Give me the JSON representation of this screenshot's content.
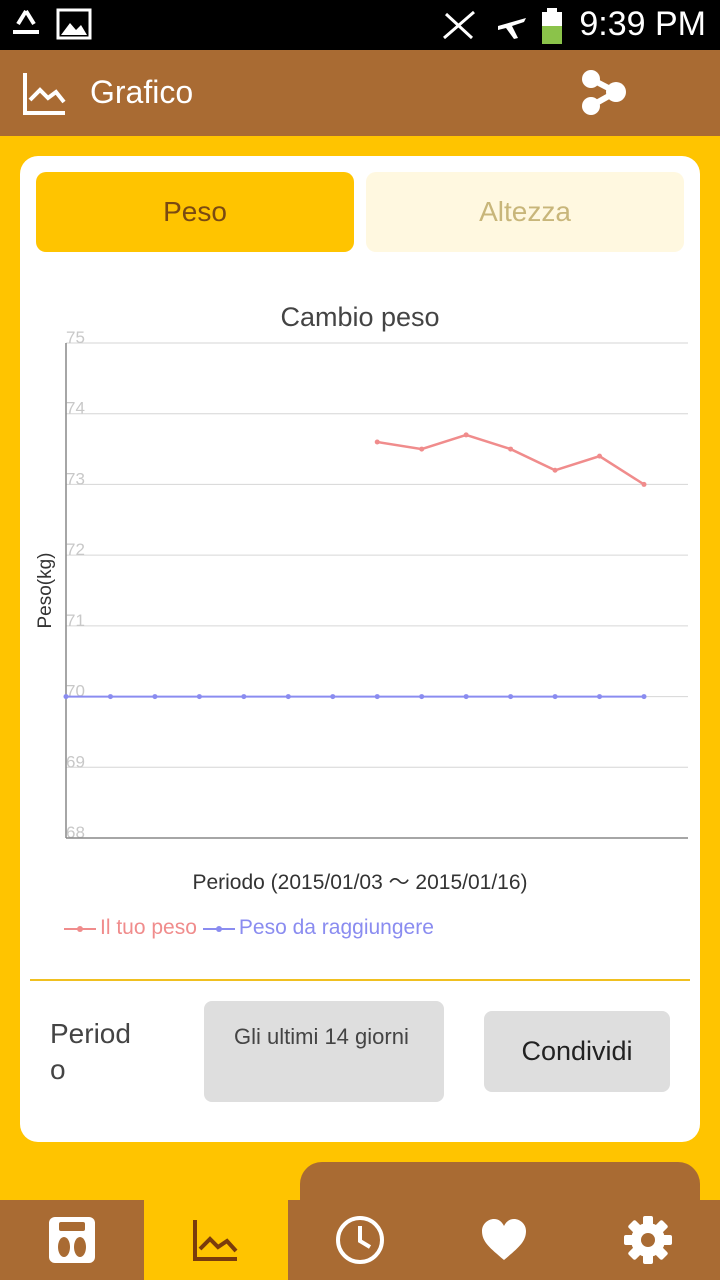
{
  "status_bar": {
    "time": "9:39 PM"
  },
  "app_bar": {
    "title": "Grafico"
  },
  "tabs": [
    {
      "label": "Peso",
      "selected": true
    },
    {
      "label": "Altezza",
      "selected": false
    }
  ],
  "chart_data": {
    "type": "line",
    "title": "Cambio peso",
    "xlabel": "Periodo (2015/01/03 〜 2015/01/16)",
    "ylabel": "Peso(kg)",
    "ylim": [
      68,
      75
    ],
    "yticks": [
      75,
      74,
      73,
      72,
      71,
      70,
      69,
      68
    ],
    "x": [
      1,
      2,
      3,
      4,
      5,
      6,
      7,
      8,
      9,
      10,
      11,
      12,
      13,
      14
    ],
    "series": [
      {
        "name": "Il tuo peso",
        "color": "#f08c8c",
        "values": [
          null,
          null,
          null,
          null,
          null,
          null,
          null,
          73.6,
          73.5,
          73.7,
          73.5,
          73.2,
          73.4,
          73.0
        ]
      },
      {
        "name": "Peso da raggiungere",
        "color": "#8a8cf0",
        "values": [
          70,
          70,
          70,
          70,
          70,
          70,
          70,
          70,
          70,
          70,
          70,
          70,
          70,
          70
        ]
      }
    ],
    "grid": true,
    "legend": "bottom-left"
  },
  "period": {
    "label": "Period\no",
    "value": "Gli ultimi 14 giorni"
  },
  "share_button": {
    "label": "Condividi"
  },
  "bottom_nav": [
    {
      "icon": "scale-icon",
      "active": false
    },
    {
      "icon": "chart-icon",
      "active": true
    },
    {
      "icon": "clock-icon",
      "active": false
    },
    {
      "icon": "heart-icon",
      "active": false
    },
    {
      "icon": "gear-icon",
      "active": false
    }
  ]
}
